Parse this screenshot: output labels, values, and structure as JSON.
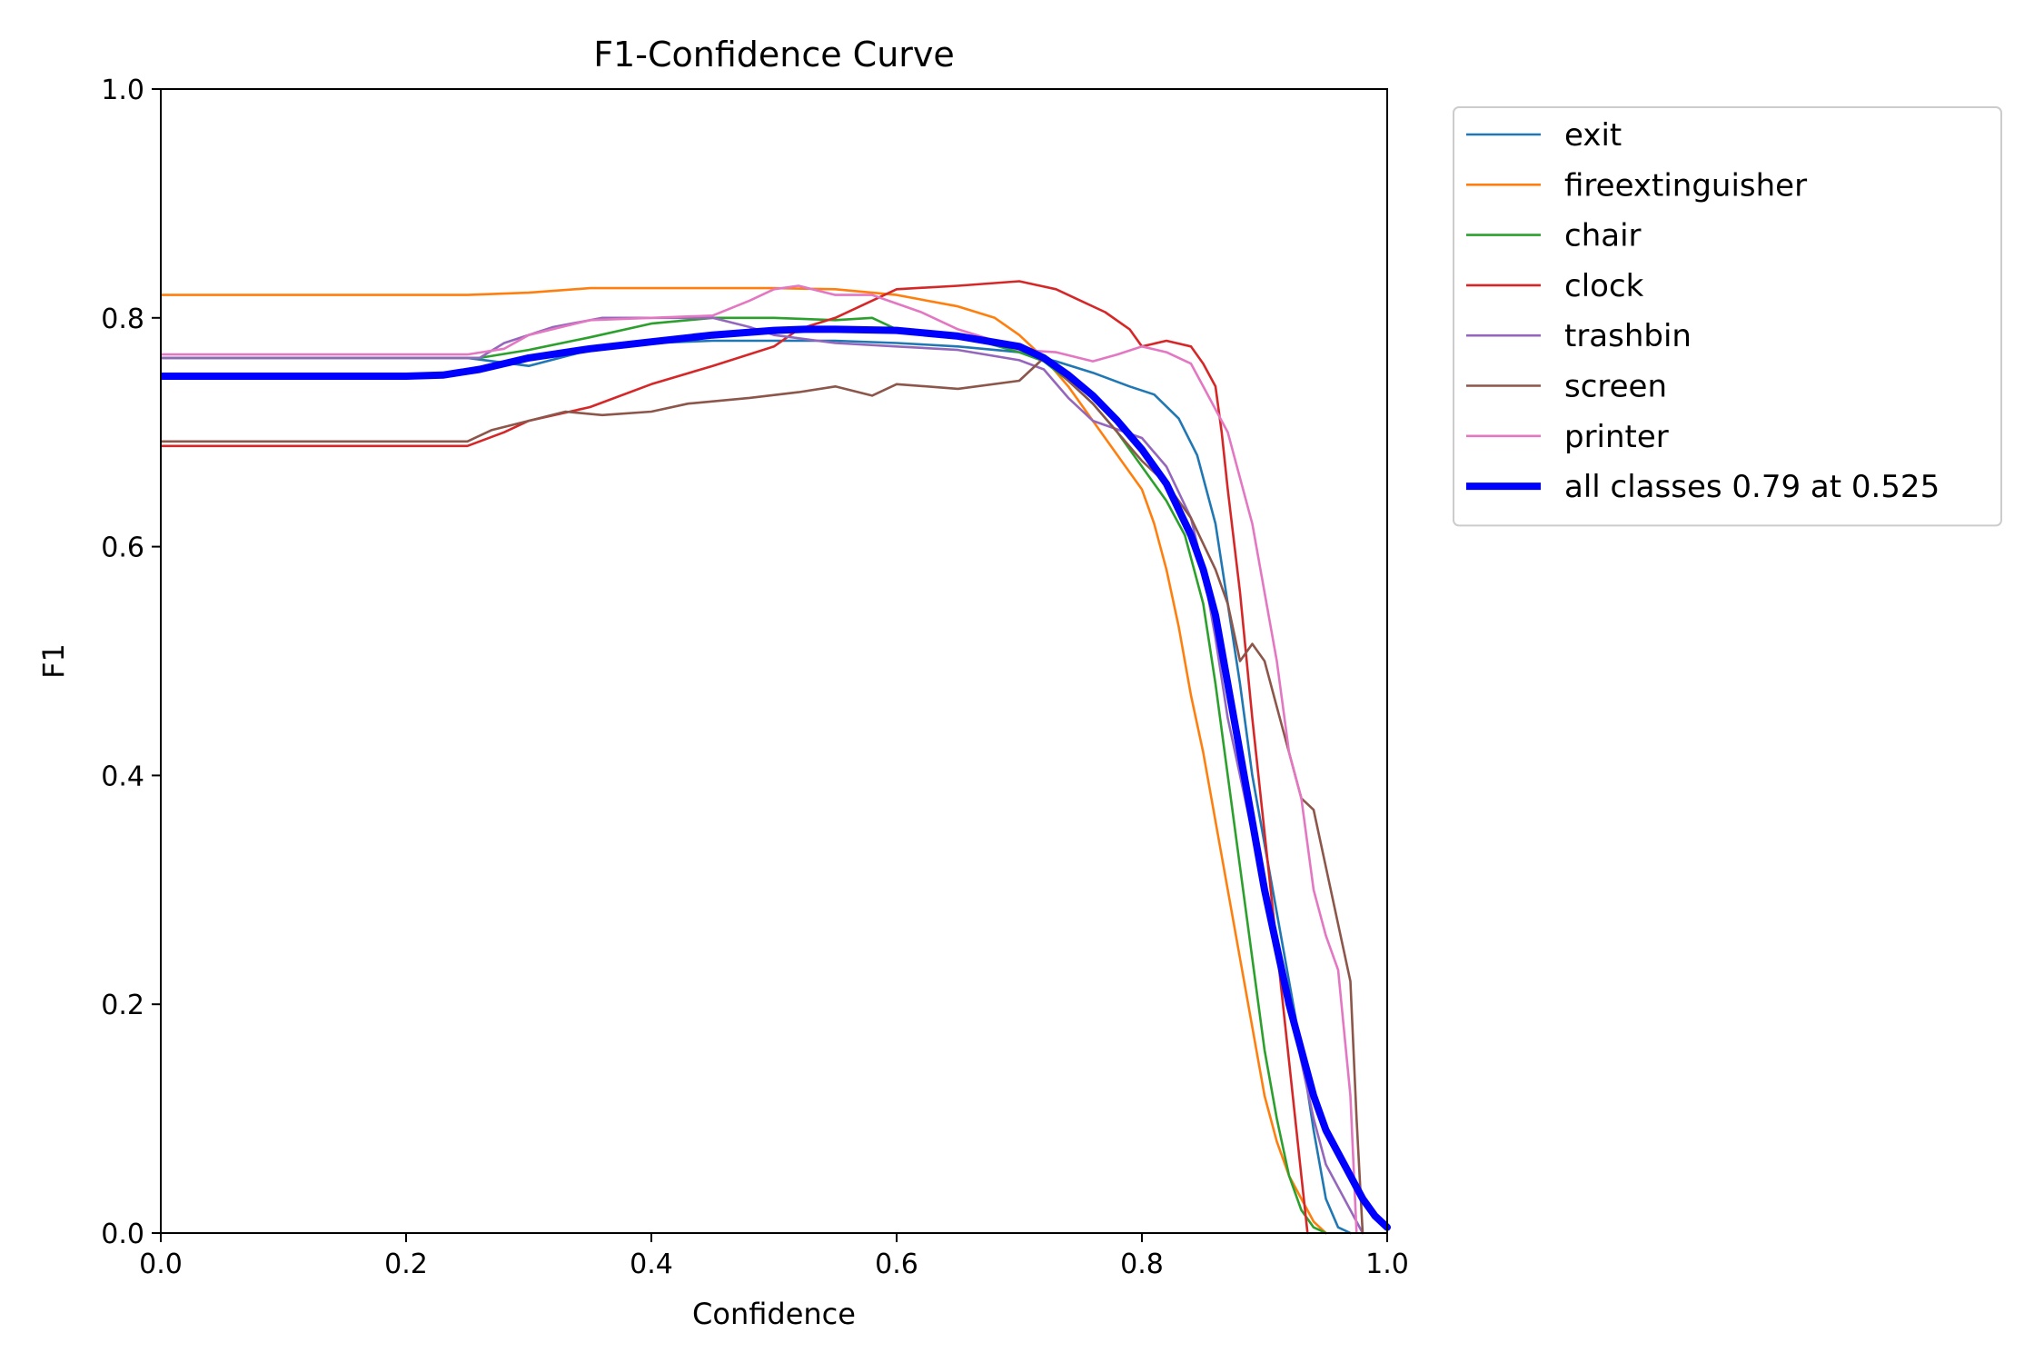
{
  "chart_data": {
    "type": "line",
    "title": "F1-Confidence Curve",
    "xlabel": "Confidence",
    "ylabel": "F1",
    "xlim": [
      0,
      1
    ],
    "ylim": [
      0,
      1
    ],
    "xticks": [
      "0.0",
      "0.2",
      "0.4",
      "0.6",
      "0.8",
      "1.0"
    ],
    "yticks": [
      "0.0",
      "0.2",
      "0.4",
      "0.6",
      "0.8",
      "1.0"
    ],
    "grid": false,
    "legend_position": "outside-top-right",
    "series": [
      {
        "name": "exit",
        "color": "#1f77b4",
        "points": [
          [
            0,
            0.765
          ],
          [
            0.25,
            0.765
          ],
          [
            0.3,
            0.758
          ],
          [
            0.35,
            0.772
          ],
          [
            0.4,
            0.778
          ],
          [
            0.45,
            0.78
          ],
          [
            0.5,
            0.78
          ],
          [
            0.55,
            0.78
          ],
          [
            0.6,
            0.778
          ],
          [
            0.65,
            0.775
          ],
          [
            0.7,
            0.77
          ],
          [
            0.73,
            0.762
          ],
          [
            0.76,
            0.752
          ],
          [
            0.79,
            0.74
          ],
          [
            0.81,
            0.733
          ],
          [
            0.83,
            0.712
          ],
          [
            0.845,
            0.68
          ],
          [
            0.86,
            0.62
          ],
          [
            0.87,
            0.55
          ],
          [
            0.88,
            0.48
          ],
          [
            0.89,
            0.4
          ],
          [
            0.9,
            0.34
          ],
          [
            0.91,
            0.28
          ],
          [
            0.92,
            0.22
          ],
          [
            0.93,
            0.16
          ],
          [
            0.94,
            0.09
          ],
          [
            0.95,
            0.03
          ],
          [
            0.96,
            0.005
          ],
          [
            0.97,
            0
          ]
        ]
      },
      {
        "name": "fireextinguisher",
        "color": "#ff7f0e",
        "points": [
          [
            0,
            0.82
          ],
          [
            0.25,
            0.82
          ],
          [
            0.3,
            0.822
          ],
          [
            0.35,
            0.826
          ],
          [
            0.4,
            0.826
          ],
          [
            0.5,
            0.826
          ],
          [
            0.55,
            0.825
          ],
          [
            0.6,
            0.82
          ],
          [
            0.65,
            0.81
          ],
          [
            0.68,
            0.8
          ],
          [
            0.7,
            0.785
          ],
          [
            0.72,
            0.765
          ],
          [
            0.74,
            0.74
          ],
          [
            0.76,
            0.71
          ],
          [
            0.78,
            0.68
          ],
          [
            0.8,
            0.65
          ],
          [
            0.81,
            0.62
          ],
          [
            0.82,
            0.58
          ],
          [
            0.83,
            0.53
          ],
          [
            0.84,
            0.47
          ],
          [
            0.85,
            0.42
          ],
          [
            0.86,
            0.36
          ],
          [
            0.87,
            0.3
          ],
          [
            0.88,
            0.24
          ],
          [
            0.89,
            0.18
          ],
          [
            0.9,
            0.12
          ],
          [
            0.91,
            0.08
          ],
          [
            0.92,
            0.05
          ],
          [
            0.93,
            0.03
          ],
          [
            0.94,
            0.01
          ],
          [
            0.95,
            0
          ]
        ]
      },
      {
        "name": "chair",
        "color": "#2ca02c",
        "points": [
          [
            0,
            0.765
          ],
          [
            0.26,
            0.765
          ],
          [
            0.3,
            0.772
          ],
          [
            0.35,
            0.783
          ],
          [
            0.4,
            0.795
          ],
          [
            0.45,
            0.8
          ],
          [
            0.5,
            0.8
          ],
          [
            0.55,
            0.798
          ],
          [
            0.58,
            0.8
          ],
          [
            0.6,
            0.79
          ],
          [
            0.65,
            0.785
          ],
          [
            0.7,
            0.77
          ],
          [
            0.72,
            0.762
          ],
          [
            0.74,
            0.745
          ],
          [
            0.76,
            0.725
          ],
          [
            0.78,
            0.7
          ],
          [
            0.8,
            0.67
          ],
          [
            0.82,
            0.64
          ],
          [
            0.835,
            0.61
          ],
          [
            0.85,
            0.55
          ],
          [
            0.86,
            0.48
          ],
          [
            0.87,
            0.4
          ],
          [
            0.88,
            0.32
          ],
          [
            0.89,
            0.24
          ],
          [
            0.9,
            0.16
          ],
          [
            0.91,
            0.1
          ],
          [
            0.92,
            0.05
          ],
          [
            0.93,
            0.02
          ],
          [
            0.94,
            0.005
          ],
          [
            0.95,
            0
          ]
        ]
      },
      {
        "name": "clock",
        "color": "#d62728",
        "points": [
          [
            0,
            0.688
          ],
          [
            0.25,
            0.688
          ],
          [
            0.28,
            0.7
          ],
          [
            0.3,
            0.71
          ],
          [
            0.35,
            0.722
          ],
          [
            0.4,
            0.742
          ],
          [
            0.45,
            0.758
          ],
          [
            0.5,
            0.775
          ],
          [
            0.52,
            0.79
          ],
          [
            0.55,
            0.8
          ],
          [
            0.58,
            0.815
          ],
          [
            0.6,
            0.825
          ],
          [
            0.65,
            0.828
          ],
          [
            0.7,
            0.832
          ],
          [
            0.73,
            0.825
          ],
          [
            0.75,
            0.815
          ],
          [
            0.77,
            0.805
          ],
          [
            0.79,
            0.79
          ],
          [
            0.8,
            0.775
          ],
          [
            0.82,
            0.78
          ],
          [
            0.84,
            0.775
          ],
          [
            0.85,
            0.76
          ],
          [
            0.86,
            0.74
          ],
          [
            0.865,
            0.7
          ],
          [
            0.87,
            0.65
          ],
          [
            0.88,
            0.56
          ],
          [
            0.89,
            0.45
          ],
          [
            0.9,
            0.35
          ],
          [
            0.91,
            0.25
          ],
          [
            0.92,
            0.15
          ],
          [
            0.93,
            0.05
          ],
          [
            0.935,
            0
          ]
        ]
      },
      {
        "name": "trashbin",
        "color": "#9467bd",
        "points": [
          [
            0,
            0.765
          ],
          [
            0.26,
            0.765
          ],
          [
            0.28,
            0.778
          ],
          [
            0.32,
            0.792
          ],
          [
            0.36,
            0.8
          ],
          [
            0.4,
            0.8
          ],
          [
            0.45,
            0.8
          ],
          [
            0.48,
            0.792
          ],
          [
            0.5,
            0.785
          ],
          [
            0.55,
            0.778
          ],
          [
            0.6,
            0.775
          ],
          [
            0.65,
            0.772
          ],
          [
            0.7,
            0.763
          ],
          [
            0.72,
            0.755
          ],
          [
            0.74,
            0.73
          ],
          [
            0.76,
            0.71
          ],
          [
            0.8,
            0.695
          ],
          [
            0.82,
            0.67
          ],
          [
            0.84,
            0.625
          ],
          [
            0.85,
            0.58
          ],
          [
            0.86,
            0.52
          ],
          [
            0.87,
            0.45
          ],
          [
            0.88,
            0.4
          ],
          [
            0.89,
            0.35
          ],
          [
            0.9,
            0.3
          ],
          [
            0.91,
            0.25
          ],
          [
            0.92,
            0.2
          ],
          [
            0.93,
            0.15
          ],
          [
            0.94,
            0.1
          ],
          [
            0.95,
            0.06
          ],
          [
            0.96,
            0.04
          ],
          [
            0.97,
            0.02
          ],
          [
            0.98,
            0
          ]
        ]
      },
      {
        "name": "screen",
        "color": "#8c564b",
        "points": [
          [
            0,
            0.692
          ],
          [
            0.25,
            0.692
          ],
          [
            0.27,
            0.702
          ],
          [
            0.3,
            0.71
          ],
          [
            0.33,
            0.718
          ],
          [
            0.36,
            0.715
          ],
          [
            0.4,
            0.718
          ],
          [
            0.43,
            0.725
          ],
          [
            0.48,
            0.73
          ],
          [
            0.52,
            0.735
          ],
          [
            0.55,
            0.74
          ],
          [
            0.58,
            0.732
          ],
          [
            0.6,
            0.742
          ],
          [
            0.65,
            0.738
          ],
          [
            0.7,
            0.745
          ],
          [
            0.72,
            0.765
          ],
          [
            0.74,
            0.745
          ],
          [
            0.76,
            0.725
          ],
          [
            0.78,
            0.7
          ],
          [
            0.8,
            0.675
          ],
          [
            0.82,
            0.655
          ],
          [
            0.84,
            0.625
          ],
          [
            0.86,
            0.58
          ],
          [
            0.87,
            0.55
          ],
          [
            0.88,
            0.5
          ],
          [
            0.89,
            0.515
          ],
          [
            0.9,
            0.5
          ],
          [
            0.91,
            0.46
          ],
          [
            0.92,
            0.42
          ],
          [
            0.93,
            0.38
          ],
          [
            0.94,
            0.37
          ],
          [
            0.95,
            0.32
          ],
          [
            0.96,
            0.27
          ],
          [
            0.97,
            0.22
          ],
          [
            0.975,
            0.1
          ],
          [
            0.98,
            0
          ]
        ]
      },
      {
        "name": "printer",
        "color": "#e377c2",
        "points": [
          [
            0,
            0.768
          ],
          [
            0.25,
            0.768
          ],
          [
            0.28,
            0.773
          ],
          [
            0.3,
            0.785
          ],
          [
            0.35,
            0.798
          ],
          [
            0.4,
            0.8
          ],
          [
            0.45,
            0.802
          ],
          [
            0.48,
            0.815
          ],
          [
            0.5,
            0.825
          ],
          [
            0.52,
            0.828
          ],
          [
            0.55,
            0.82
          ],
          [
            0.58,
            0.82
          ],
          [
            0.62,
            0.805
          ],
          [
            0.65,
            0.79
          ],
          [
            0.68,
            0.78
          ],
          [
            0.7,
            0.772
          ],
          [
            0.73,
            0.77
          ],
          [
            0.76,
            0.762
          ],
          [
            0.78,
            0.768
          ],
          [
            0.8,
            0.775
          ],
          [
            0.82,
            0.77
          ],
          [
            0.84,
            0.76
          ],
          [
            0.85,
            0.74
          ],
          [
            0.86,
            0.72
          ],
          [
            0.87,
            0.7
          ],
          [
            0.88,
            0.66
          ],
          [
            0.89,
            0.62
          ],
          [
            0.9,
            0.56
          ],
          [
            0.91,
            0.5
          ],
          [
            0.92,
            0.42
          ],
          [
            0.93,
            0.38
          ],
          [
            0.94,
            0.3
          ],
          [
            0.95,
            0.26
          ],
          [
            0.96,
            0.23
          ],
          [
            0.97,
            0.12
          ],
          [
            0.975,
            0
          ]
        ]
      },
      {
        "name": "all classes 0.79 at 0.525",
        "color": "#0000ff",
        "bold": true,
        "points": [
          [
            0,
            0.749
          ],
          [
            0.1,
            0.749
          ],
          [
            0.2,
            0.749
          ],
          [
            0.23,
            0.75
          ],
          [
            0.26,
            0.755
          ],
          [
            0.3,
            0.765
          ],
          [
            0.35,
            0.773
          ],
          [
            0.4,
            0.779
          ],
          [
            0.45,
            0.785
          ],
          [
            0.5,
            0.789
          ],
          [
            0.525,
            0.79
          ],
          [
            0.55,
            0.79
          ],
          [
            0.6,
            0.789
          ],
          [
            0.65,
            0.784
          ],
          [
            0.7,
            0.775
          ],
          [
            0.72,
            0.765
          ],
          [
            0.74,
            0.75
          ],
          [
            0.76,
            0.732
          ],
          [
            0.78,
            0.71
          ],
          [
            0.8,
            0.685
          ],
          [
            0.82,
            0.655
          ],
          [
            0.84,
            0.61
          ],
          [
            0.85,
            0.58
          ],
          [
            0.86,
            0.54
          ],
          [
            0.87,
            0.48
          ],
          [
            0.88,
            0.42
          ],
          [
            0.89,
            0.36
          ],
          [
            0.9,
            0.3
          ],
          [
            0.91,
            0.25
          ],
          [
            0.92,
            0.2
          ],
          [
            0.93,
            0.16
          ],
          [
            0.94,
            0.12
          ],
          [
            0.95,
            0.09
          ],
          [
            0.96,
            0.07
          ],
          [
            0.97,
            0.05
          ],
          [
            0.98,
            0.03
          ],
          [
            0.99,
            0.015
          ],
          [
            1.0,
            0.005
          ]
        ]
      }
    ]
  }
}
